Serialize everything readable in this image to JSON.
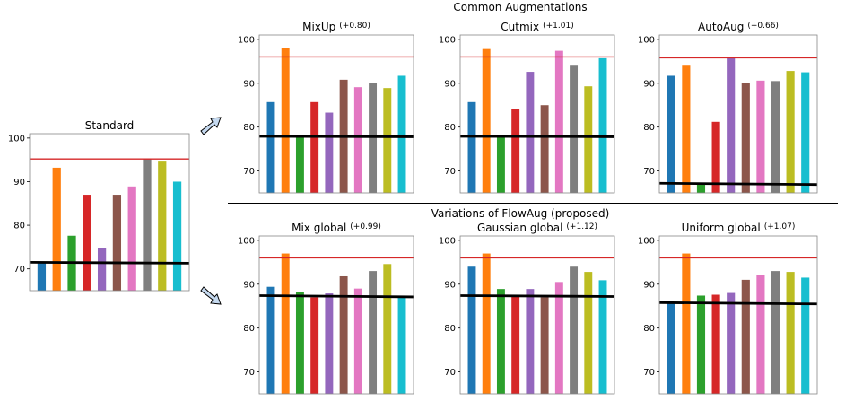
{
  "headers": {
    "top": "Common Augmentations",
    "bottom": "Variations of FlowAug (proposed)"
  },
  "colors": [
    "#1f77b4",
    "#ff7f0e",
    "#2ca02c",
    "#d62728",
    "#9467bd",
    "#8c564b",
    "#e377c2",
    "#7f7f7f",
    "#bcbd22",
    "#17becf"
  ],
  "reference_color": "#d62728",
  "baseline_color": "#000000",
  "arrow_fill": "#c5d9ef",
  "chart_data": [
    {
      "id": "standard",
      "type": "bar",
      "title": "Standard",
      "delta": "",
      "ylim": [
        65,
        101
      ],
      "yticks": [
        70,
        80,
        90,
        100
      ],
      "values": [
        71.5,
        93.2,
        77.6,
        87.0,
        74.8,
        87.0,
        88.9,
        95.2,
        94.6,
        90.0
      ],
      "reference": 95.2,
      "baseline": [
        71.5,
        71.3
      ]
    },
    {
      "id": "mixup",
      "type": "bar",
      "title": "MixUp",
      "delta": "(+0.80)",
      "ylim": [
        65,
        101
      ],
      "yticks": [
        70,
        80,
        90,
        100
      ],
      "values": [
        85.7,
        98.0,
        78.0,
        85.7,
        83.3,
        90.8,
        89.1,
        90.0,
        88.9,
        91.7
      ],
      "reference": 96.0,
      "baseline": [
        77.9,
        77.8
      ]
    },
    {
      "id": "cutmix",
      "type": "bar",
      "title": "Cutmix",
      "delta": "(+1.01)",
      "ylim": [
        65,
        101
      ],
      "yticks": [
        70,
        80,
        90,
        100
      ],
      "values": [
        85.7,
        97.8,
        78.0,
        84.1,
        92.6,
        85.0,
        97.4,
        94.0,
        89.3,
        95.7
      ],
      "reference": 96.0,
      "baseline": [
        77.9,
        77.8
      ]
    },
    {
      "id": "autoaug",
      "type": "bar",
      "title": "AutoAug",
      "delta": "(+0.66)",
      "ylim": [
        65,
        101
      ],
      "yticks": [
        70,
        80,
        90,
        100
      ],
      "values": [
        91.7,
        94.0,
        67.0,
        81.2,
        95.8,
        90.0,
        90.6,
        90.5,
        92.8,
        92.5
      ],
      "reference": 95.8,
      "baseline": [
        67.2,
        66.9
      ]
    },
    {
      "id": "mix-global",
      "type": "bar",
      "title": "Mix global",
      "delta": "(+0.99)",
      "ylim": [
        65,
        101
      ],
      "yticks": [
        70,
        80,
        90,
        100
      ],
      "values": [
        89.4,
        97.0,
        88.2,
        87.0,
        87.9,
        91.8,
        89.0,
        93.0,
        94.6,
        87.0
      ],
      "reference": 96.0,
      "baseline": [
        87.4,
        87.1
      ]
    },
    {
      "id": "gaussian-global",
      "type": "bar",
      "title": "Gaussian global",
      "delta": "(+1.12)",
      "ylim": [
        65,
        101
      ],
      "yticks": [
        70,
        80,
        90,
        100
      ],
      "values": [
        94.0,
        97.0,
        88.9,
        87.6,
        88.9,
        87.0,
        90.5,
        94.0,
        92.8,
        90.9
      ],
      "reference": 96.0,
      "baseline": [
        87.4,
        87.2
      ]
    },
    {
      "id": "uniform-global",
      "type": "bar",
      "title": "Uniform global",
      "delta": "(+1.07)",
      "ylim": [
        65,
        101
      ],
      "yticks": [
        70,
        80,
        90,
        100
      ],
      "values": [
        85.7,
        97.0,
        87.4,
        87.6,
        88.0,
        91.0,
        92.1,
        93.0,
        92.8,
        91.5
      ],
      "reference": 96.0,
      "baseline": [
        85.8,
        85.5
      ]
    }
  ]
}
